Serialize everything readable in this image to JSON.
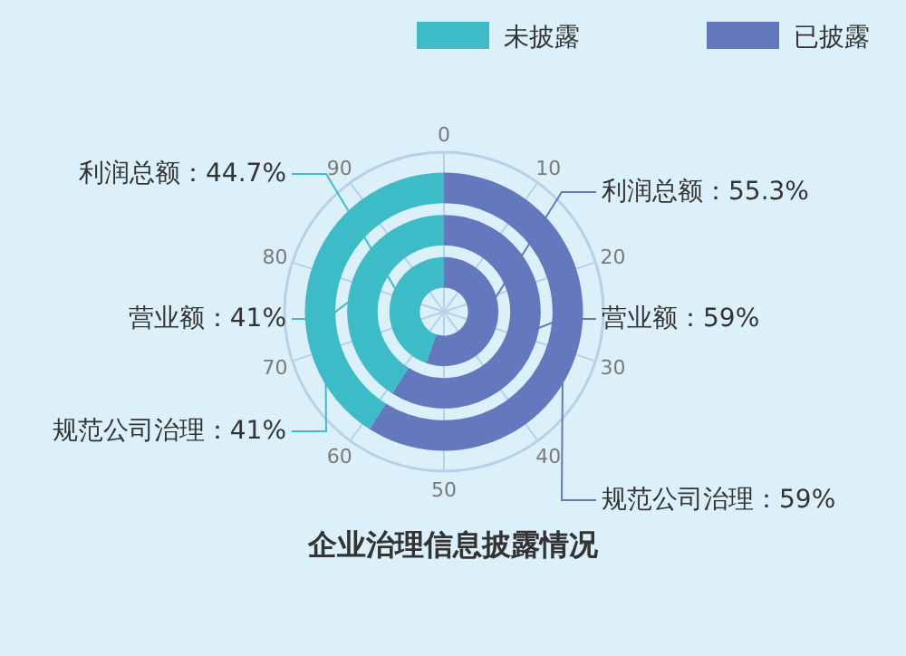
{
  "chart_data": [
    {
      "type": "donut",
      "title": "企业治理信息披露情况",
      "legend": "top right",
      "categories": [
        "已披露",
        "未披露"
      ],
      "values": [
        55.3,
        44.7
      ],
      "colors": [
        "#6478bd",
        "#3dbcc8"
      ],
      "value_labels": [
        "利润总额：55.3%",
        "利润总额：44.7%"
      ],
      "annotations": [
        "0",
        "10",
        "20",
        "30",
        "40",
        "50",
        "60",
        "70",
        "80",
        "90"
      ]
    },
    {
      "type": "donut",
      "categories": [
        null,
        null
      ],
      "values": [
        59,
        41
      ],
      "colors": [
        "#6478bd",
        "#3dbcc8"
      ],
      "value_labels": [
        "营业额：59%",
        "营业额：41%"
      ]
    },
    {
      "type": "donut",
      "categories": [
        null,
        null
      ],
      "values": [
        59,
        41
      ],
      "colors": [
        "#6478bd",
        "#3dbcc8"
      ],
      "value_labels": [
        "规范公司治理：59%",
        "规范公司治理：41%"
      ]
    }
  ]
}
